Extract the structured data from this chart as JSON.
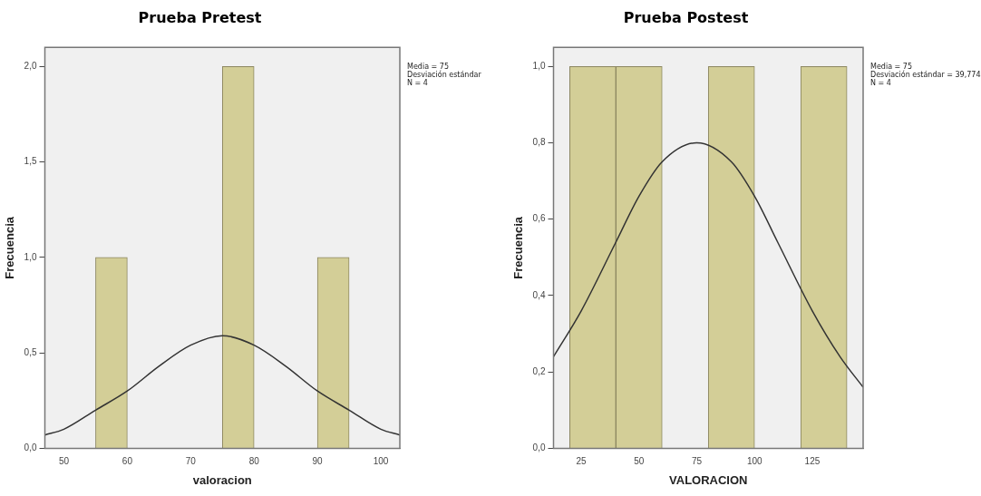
{
  "chart_data": [
    {
      "type": "histogram",
      "title": "Prueba Pretest",
      "xlabel": "valoracion",
      "ylabel": "Frecuencia",
      "bins": [
        55,
        60,
        65,
        70,
        75,
        80,
        85,
        90,
        95
      ],
      "values": [
        1,
        0,
        0,
        0,
        2,
        0,
        0,
        1
      ],
      "color": "#d3ce97",
      "series": [
        {
          "type": "line",
          "color": "#333333",
          "x": [
            47,
            50,
            55,
            60,
            65,
            70,
            75,
            80,
            85,
            90,
            95,
            100,
            103
          ],
          "values": [
            0.07,
            0.1,
            0.2,
            0.3,
            0.43,
            0.54,
            0.59,
            0.54,
            0.43,
            0.3,
            0.2,
            0.1,
            0.07
          ]
        }
      ],
      "xlim": [
        47,
        103
      ],
      "xticks": [
        50,
        60,
        70,
        80,
        90,
        100
      ],
      "ylim": [
        0,
        2.1
      ],
      "yticks": [
        {
          "value": 0,
          "label": "0,0"
        },
        {
          "value": 0.5,
          "label": "0,5"
        },
        {
          "value": 1,
          "label": "1,0"
        },
        {
          "value": 1.5,
          "label": "1,5"
        },
        {
          "value": 2,
          "label": "2,0"
        }
      ],
      "grid": false,
      "legend": false,
      "marker": "none",
      "line_style": "solid",
      "annotations": [
        "Media = 75",
        "Desviación estándar",
        "N = 4"
      ]
    },
    {
      "type": "histogram",
      "title": "Prueba Postest",
      "xlabel": "VALORACION",
      "ylabel": "Frecuencia",
      "bins": [
        20,
        40,
        60,
        80,
        100,
        120,
        140
      ],
      "values": [
        1,
        1,
        0,
        1,
        0,
        1
      ],
      "color": "#d3ce97",
      "series": [
        {
          "type": "line",
          "color": "#333333",
          "x": [
            13,
            25,
            40,
            50,
            60,
            75,
            90,
            100,
            110,
            125,
            137,
            147
          ],
          "values": [
            0.24,
            0.36,
            0.54,
            0.66,
            0.75,
            0.8,
            0.75,
            0.66,
            0.54,
            0.36,
            0.24,
            0.16
          ]
        }
      ],
      "xlim": [
        13,
        147
      ],
      "xticks": [
        25,
        50,
        75,
        100,
        125
      ],
      "ylim": [
        0,
        1.05
      ],
      "yticks": [
        {
          "value": 0,
          "label": "0,0"
        },
        {
          "value": 0.2,
          "label": "0,2"
        },
        {
          "value": 0.4,
          "label": "0,4"
        },
        {
          "value": 0.6,
          "label": "0,6"
        },
        {
          "value": 0.8,
          "label": "0,8"
        },
        {
          "value": 1,
          "label": "1,0"
        }
      ],
      "grid": false,
      "legend": false,
      "marker": "none",
      "line_style": "solid",
      "annotations": [
        "Media = 75",
        "Desviación estándar = 39,774",
        "N = 4"
      ]
    }
  ]
}
